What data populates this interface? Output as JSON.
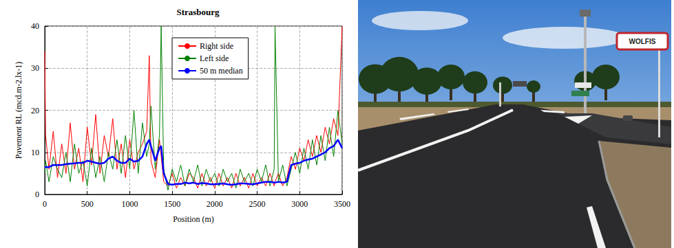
{
  "chart_data": {
    "type": "line",
    "title": "Strasbourg",
    "x_label": "Position (m)",
    "y_label": "Pavement RL (mcd.m-2.lx-1)",
    "x": [
      0,
      10,
      50,
      100,
      150,
      200,
      250,
      300,
      350,
      400,
      450,
      500,
      550,
      600,
      650,
      700,
      750,
      800,
      850,
      900,
      950,
      1000,
      1050,
      1100,
      1150,
      1200,
      1230,
      1250,
      1300,
      1350,
      1370,
      1400,
      1450,
      1500,
      1550,
      1600,
      1650,
      1700,
      1750,
      1800,
      1850,
      1900,
      1950,
      2000,
      2050,
      2100,
      2150,
      2200,
      2250,
      2300,
      2350,
      2400,
      2450,
      2500,
      2550,
      2600,
      2650,
      2700,
      2710,
      2750,
      2800,
      2850,
      2900,
      2950,
      3000,
      3050,
      3100,
      3150,
      3200,
      3250,
      3300,
      3350,
      3400,
      3450,
      3500
    ],
    "series": [
      {
        "name": "Right side",
        "color": "#ff0000",
        "values": [
          34,
          14,
          6,
          15,
          4,
          12,
          5,
          17,
          6,
          11,
          3,
          16,
          7,
          19,
          5,
          14,
          9,
          18,
          6,
          12,
          4,
          13,
          6,
          10,
          12,
          15,
          33,
          8,
          4,
          13,
          9,
          3,
          2,
          5,
          1.5,
          4,
          2,
          5,
          4,
          1.5,
          5,
          2,
          4,
          1.5,
          5,
          2,
          4,
          1.5,
          5,
          2,
          4,
          1.5,
          5,
          2,
          4,
          2,
          5,
          2,
          3,
          5,
          2,
          4,
          9,
          6,
          11,
          8,
          13,
          9,
          14,
          10,
          16,
          12,
          18,
          14,
          40
        ]
      },
      {
        "name": "Left side",
        "color": "#008000",
        "values": [
          5,
          8,
          3,
          9,
          6,
          4,
          10,
          3,
          12,
          5,
          8,
          2,
          11,
          4,
          9,
          3,
          10,
          6,
          13,
          5,
          14,
          6,
          20,
          5,
          17,
          9,
          12,
          21,
          6,
          14,
          40,
          6,
          1,
          6,
          3,
          7,
          2,
          6,
          3,
          7,
          2,
          6,
          3,
          5,
          2,
          6,
          3,
          5,
          1.5,
          6,
          3,
          5,
          2,
          6,
          3,
          7,
          2,
          6,
          40,
          3,
          7,
          2,
          6,
          10,
          5,
          11,
          6,
          13,
          7,
          14,
          8,
          16,
          9,
          20,
          12
        ]
      },
      {
        "name": "50 m median",
        "color": "#0000ff",
        "values": [
          6.5,
          6.5,
          6.5,
          7,
          7,
          7,
          7.2,
          7.3,
          7.4,
          7.5,
          7.5,
          8,
          7.8,
          7.5,
          7.3,
          7.5,
          8.5,
          9,
          8,
          7.5,
          7.5,
          8.5,
          7.8,
          8,
          9,
          12,
          13,
          11.5,
          8,
          11,
          11.5,
          5,
          2.5,
          2.3,
          2.5,
          2.5,
          2.8,
          2.6,
          2.8,
          2.5,
          2.7,
          2.6,
          2.4,
          2.4,
          2.5,
          2.6,
          2.4,
          2.3,
          2.4,
          2.6,
          2.6,
          2.5,
          2.4,
          2.6,
          2.8,
          3,
          3,
          2.8,
          2.8,
          3,
          2.8,
          3,
          7,
          7.3,
          7.5,
          8,
          8.3,
          8.5,
          9,
          9.5,
          10,
          11,
          11.5,
          13,
          11
        ]
      }
    ],
    "xlim": [
      0,
      3500
    ],
    "xticks": [
      0,
      500,
      1000,
      1500,
      2000,
      2500,
      3000,
      3500
    ],
    "ylim": [
      0,
      40
    ],
    "yticks": [
      0,
      10,
      20,
      30,
      40
    ],
    "grid": true,
    "legend": "upper right"
  },
  "photo": {
    "sign_text": "WOLFIS"
  }
}
